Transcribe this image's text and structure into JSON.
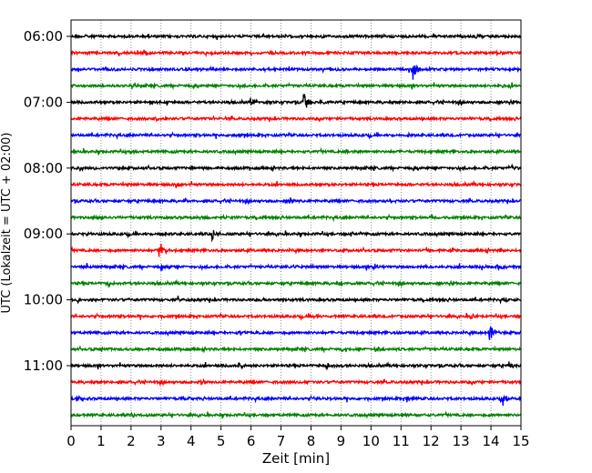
{
  "chart_data": {
    "type": "line",
    "title": "",
    "xlabel": "Zeit  [min]",
    "ylabel": "UTC (Lokalzeit = UTC + 02:00)",
    "xlim": [
      0,
      15
    ],
    "x_ticks": [
      0,
      1,
      2,
      3,
      4,
      5,
      6,
      7,
      8,
      9,
      10,
      11,
      12,
      13,
      14,
      15
    ],
    "x_tick_labels": [
      "0",
      "1",
      "2",
      "3",
      "4",
      "5",
      "6",
      "7",
      "8",
      "9",
      "10",
      "11",
      "12",
      "13",
      "14",
      "15"
    ],
    "y_tick_labels": [
      "06:00",
      "07:00",
      "08:00",
      "09:00",
      "10:00",
      "11:00"
    ],
    "y_tick_rows": [
      0,
      4,
      8,
      12,
      16,
      20
    ],
    "grid": "vertical dotted at each minute",
    "rows_per_hour": 4,
    "minutes_per_row": 15,
    "start_time": "06:00",
    "trace_colors": [
      "#000000",
      "#ff0000",
      "#0000ff",
      "#008000"
    ],
    "rows": [
      {
        "start": "06:00",
        "events": [
          [
            13.5,
            0.2
          ]
        ]
      },
      {
        "start": "06:15",
        "events": [
          [
            2.5,
            0.2
          ],
          [
            14.2,
            0.2
          ]
        ]
      },
      {
        "start": "06:30",
        "events": [
          [
            11.4,
            1.0
          ],
          [
            6.4,
            0.2
          ],
          [
            8.8,
            0.2
          ]
        ]
      },
      {
        "start": "06:45",
        "events": [
          [
            14.2,
            0.3
          ]
        ]
      },
      {
        "start": "07:00",
        "events": [
          [
            7.75,
            1.0
          ],
          [
            6.0,
            0.3
          ],
          [
            8.3,
            0.2
          ],
          [
            2.6,
            0.2
          ]
        ]
      },
      {
        "start": "07:15",
        "events": [
          [
            4.7,
            0.3
          ],
          [
            2.8,
            0.2
          ]
        ]
      },
      {
        "start": "07:30",
        "events": [
          [
            5.3,
            0.2
          ],
          [
            11.2,
            0.2
          ],
          [
            15.0,
            0.2
          ]
        ]
      },
      {
        "start": "07:45",
        "events": [
          [
            9.2,
            0.2
          ],
          [
            2.0,
            0.2
          ]
        ]
      },
      {
        "start": "08:00",
        "events": [
          [
            0.3,
            0.3
          ],
          [
            0.7,
            0.2
          ],
          [
            4.0,
            0.2
          ],
          [
            14.7,
            0.2
          ]
        ]
      },
      {
        "start": "08:15",
        "events": [
          [
            3.5,
            0.2
          ]
        ]
      },
      {
        "start": "08:30",
        "events": [
          [
            7.3,
            0.3
          ],
          [
            10.6,
            0.2
          ],
          [
            3.8,
            0.2
          ]
        ]
      },
      {
        "start": "08:45",
        "events": [
          [
            0.7,
            0.2
          ],
          [
            4.3,
            0.2
          ],
          [
            5.0,
            0.2
          ],
          [
            12.0,
            0.2
          ]
        ]
      },
      {
        "start": "09:00",
        "events": [
          [
            4.7,
            0.5
          ],
          [
            0.5,
            0.2
          ],
          [
            3.0,
            0.2
          ],
          [
            9.3,
            0.2
          ]
        ]
      },
      {
        "start": "09:15",
        "events": [
          [
            2.95,
            0.9
          ],
          [
            12.7,
            0.2
          ],
          [
            14.3,
            0.2
          ]
        ]
      },
      {
        "start": "09:30",
        "events": [
          [
            0.5,
            0.2
          ],
          [
            3.0,
            0.3
          ],
          [
            7.4,
            0.2
          ],
          [
            10.1,
            0.3
          ],
          [
            11.7,
            0.2
          ],
          [
            13.7,
            0.2
          ],
          [
            14.2,
            0.3
          ],
          [
            14.4,
            0.2
          ]
        ]
      },
      {
        "start": "09:45",
        "events": [
          [
            1.2,
            0.3
          ],
          [
            9.0,
            0.2
          ]
        ]
      },
      {
        "start": "10:00",
        "events": [
          [
            0.2,
            0.3
          ],
          [
            3.5,
            0.2
          ],
          [
            6.3,
            0.2
          ],
          [
            14.5,
            0.2
          ],
          [
            15.0,
            0.2
          ]
        ]
      },
      {
        "start": "10:15",
        "events": [
          [
            13.3,
            0.3
          ],
          [
            8.1,
            0.2
          ]
        ]
      },
      {
        "start": "10:30",
        "events": [
          [
            13.95,
            1.0
          ],
          [
            5.6,
            0.2
          ],
          [
            10.8,
            0.2
          ]
        ]
      },
      {
        "start": "10:45",
        "events": [
          [
            10.1,
            0.3
          ],
          [
            9.0,
            0.2
          ],
          [
            1.0,
            0.2
          ]
        ]
      },
      {
        "start": "11:00",
        "events": [
          [
            8.5,
            0.3
          ],
          [
            5.6,
            0.2
          ],
          [
            14.6,
            0.3
          ]
        ]
      },
      {
        "start": "11:15",
        "events": [
          [
            4.3,
            0.3
          ],
          [
            7.3,
            0.2
          ]
        ]
      },
      {
        "start": "11:30",
        "events": [
          [
            14.4,
            0.7
          ],
          [
            11.2,
            0.3
          ],
          [
            0.2,
            0.3
          ],
          [
            3.7,
            0.2
          ],
          [
            8.1,
            0.2
          ]
        ]
      },
      {
        "start": "11:45",
        "events": [
          [
            2.0,
            0.2
          ],
          [
            11.0,
            0.2
          ]
        ]
      }
    ]
  }
}
